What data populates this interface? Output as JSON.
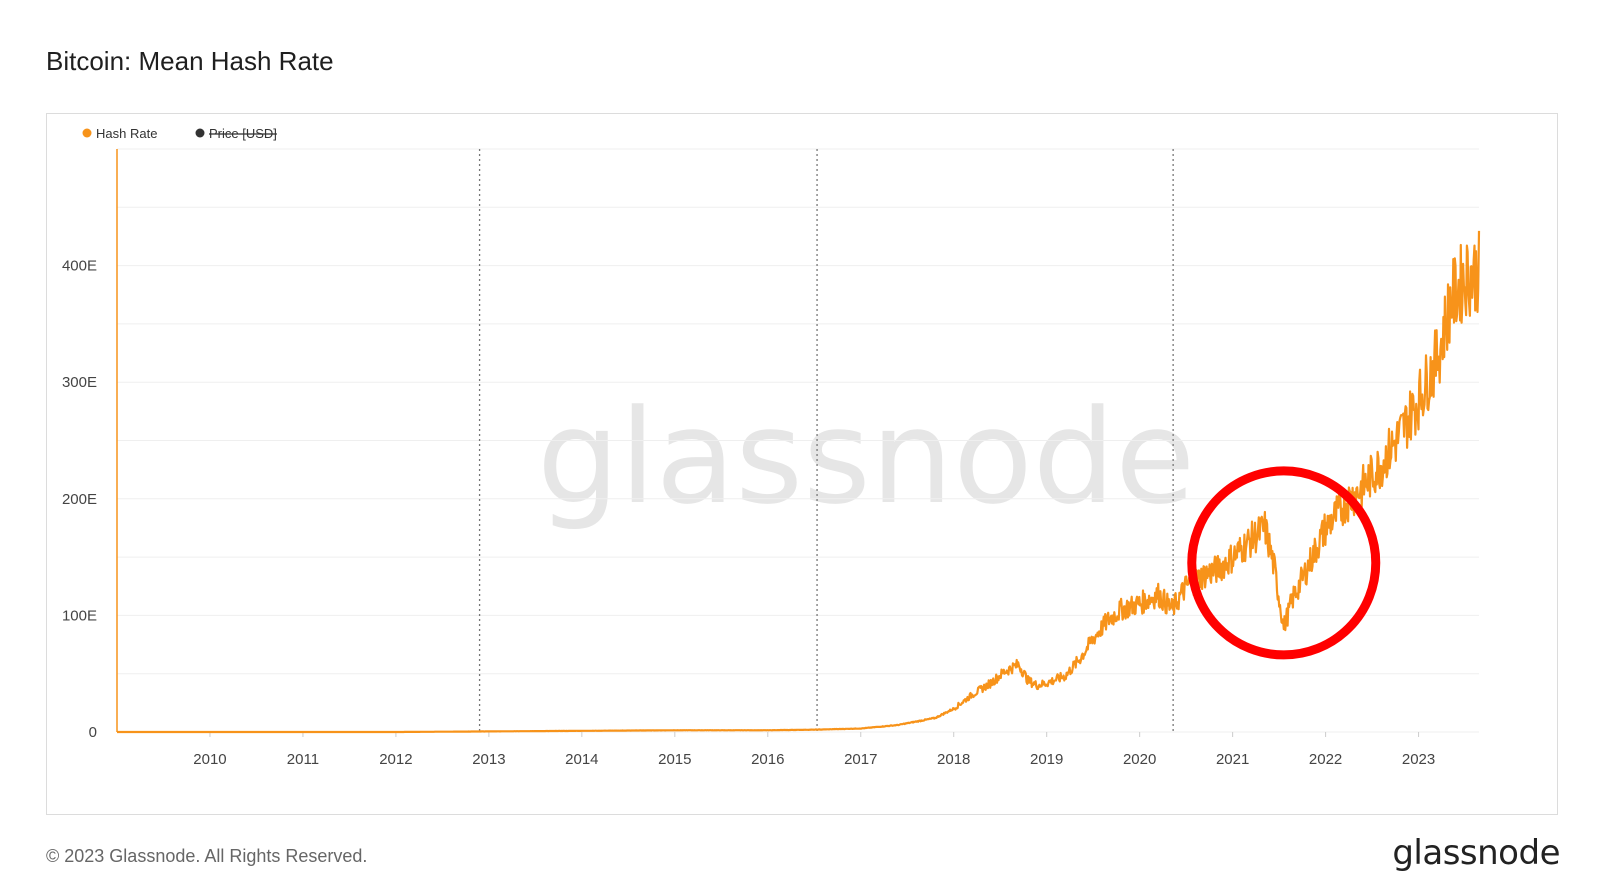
{
  "title": "Bitcoin: Mean Hash Rate",
  "footer": {
    "copyright": "© 2023 Glassnode. All Rights Reserved.",
    "logo": "glassnode"
  },
  "watermark": "glassnode",
  "colors": {
    "hash_rate": "#f7931a",
    "price": "#333333",
    "highlight_circle": "#ff0000",
    "grid": "#efefef",
    "halving_line": "#777777"
  },
  "chart_data": {
    "type": "line",
    "title": "Bitcoin: Mean Hash Rate",
    "legend": [
      {
        "name": "Hash Rate",
        "color": "#f7931a",
        "enabled": true
      },
      {
        "name": "Price [USD]",
        "color": "#333333",
        "enabled": false
      }
    ],
    "legend_position": "top-left",
    "x_ticks": [
      "2010",
      "2011",
      "2012",
      "2013",
      "2014",
      "2015",
      "2016",
      "2017",
      "2018",
      "2019",
      "2020",
      "2021",
      "2022",
      "2023"
    ],
    "y_ticks": [
      "0",
      "100E",
      "200E",
      "300E",
      "400E"
    ],
    "ylim": [
      0,
      500
    ],
    "xlim": [
      2009.0,
      2023.65
    ],
    "grid": true,
    "halving_markers": [
      2012.9,
      2016.53,
      2020.36
    ],
    "series": [
      {
        "name": "Hash Rate",
        "x": [
          2009.0,
          2010.0,
          2011.0,
          2012.0,
          2013.0,
          2014.0,
          2015.0,
          2016.0,
          2016.5,
          2017.0,
          2017.4,
          2017.8,
          2018.0,
          2018.2,
          2018.4,
          2018.55,
          2018.7,
          2018.8,
          2018.9,
          2019.0,
          2019.2,
          2019.35,
          2019.5,
          2019.65,
          2019.8,
          2020.0,
          2020.2,
          2020.35,
          2020.5,
          2020.7,
          2020.85,
          2021.0,
          2021.2,
          2021.35,
          2021.45,
          2021.55,
          2021.65,
          2021.8,
          2022.0,
          2022.2,
          2022.4,
          2022.6,
          2022.8,
          2023.0,
          2023.2,
          2023.35,
          2023.5,
          2023.65
        ],
        "y": [
          0,
          0,
          0,
          0,
          0.5,
          1,
          1.5,
          1.5,
          2,
          3,
          6,
          12,
          20,
          32,
          42,
          52,
          58,
          44,
          40,
          42,
          48,
          62,
          80,
          95,
          105,
          110,
          118,
          105,
          125,
          135,
          140,
          150,
          165,
          175,
          140,
          90,
          115,
          140,
          175,
          195,
          210,
          230,
          255,
          285,
          320,
          370,
          390,
          395
        ]
      }
    ],
    "highlight_region": {
      "x_center": 2021.55,
      "y_center": 145
    }
  }
}
